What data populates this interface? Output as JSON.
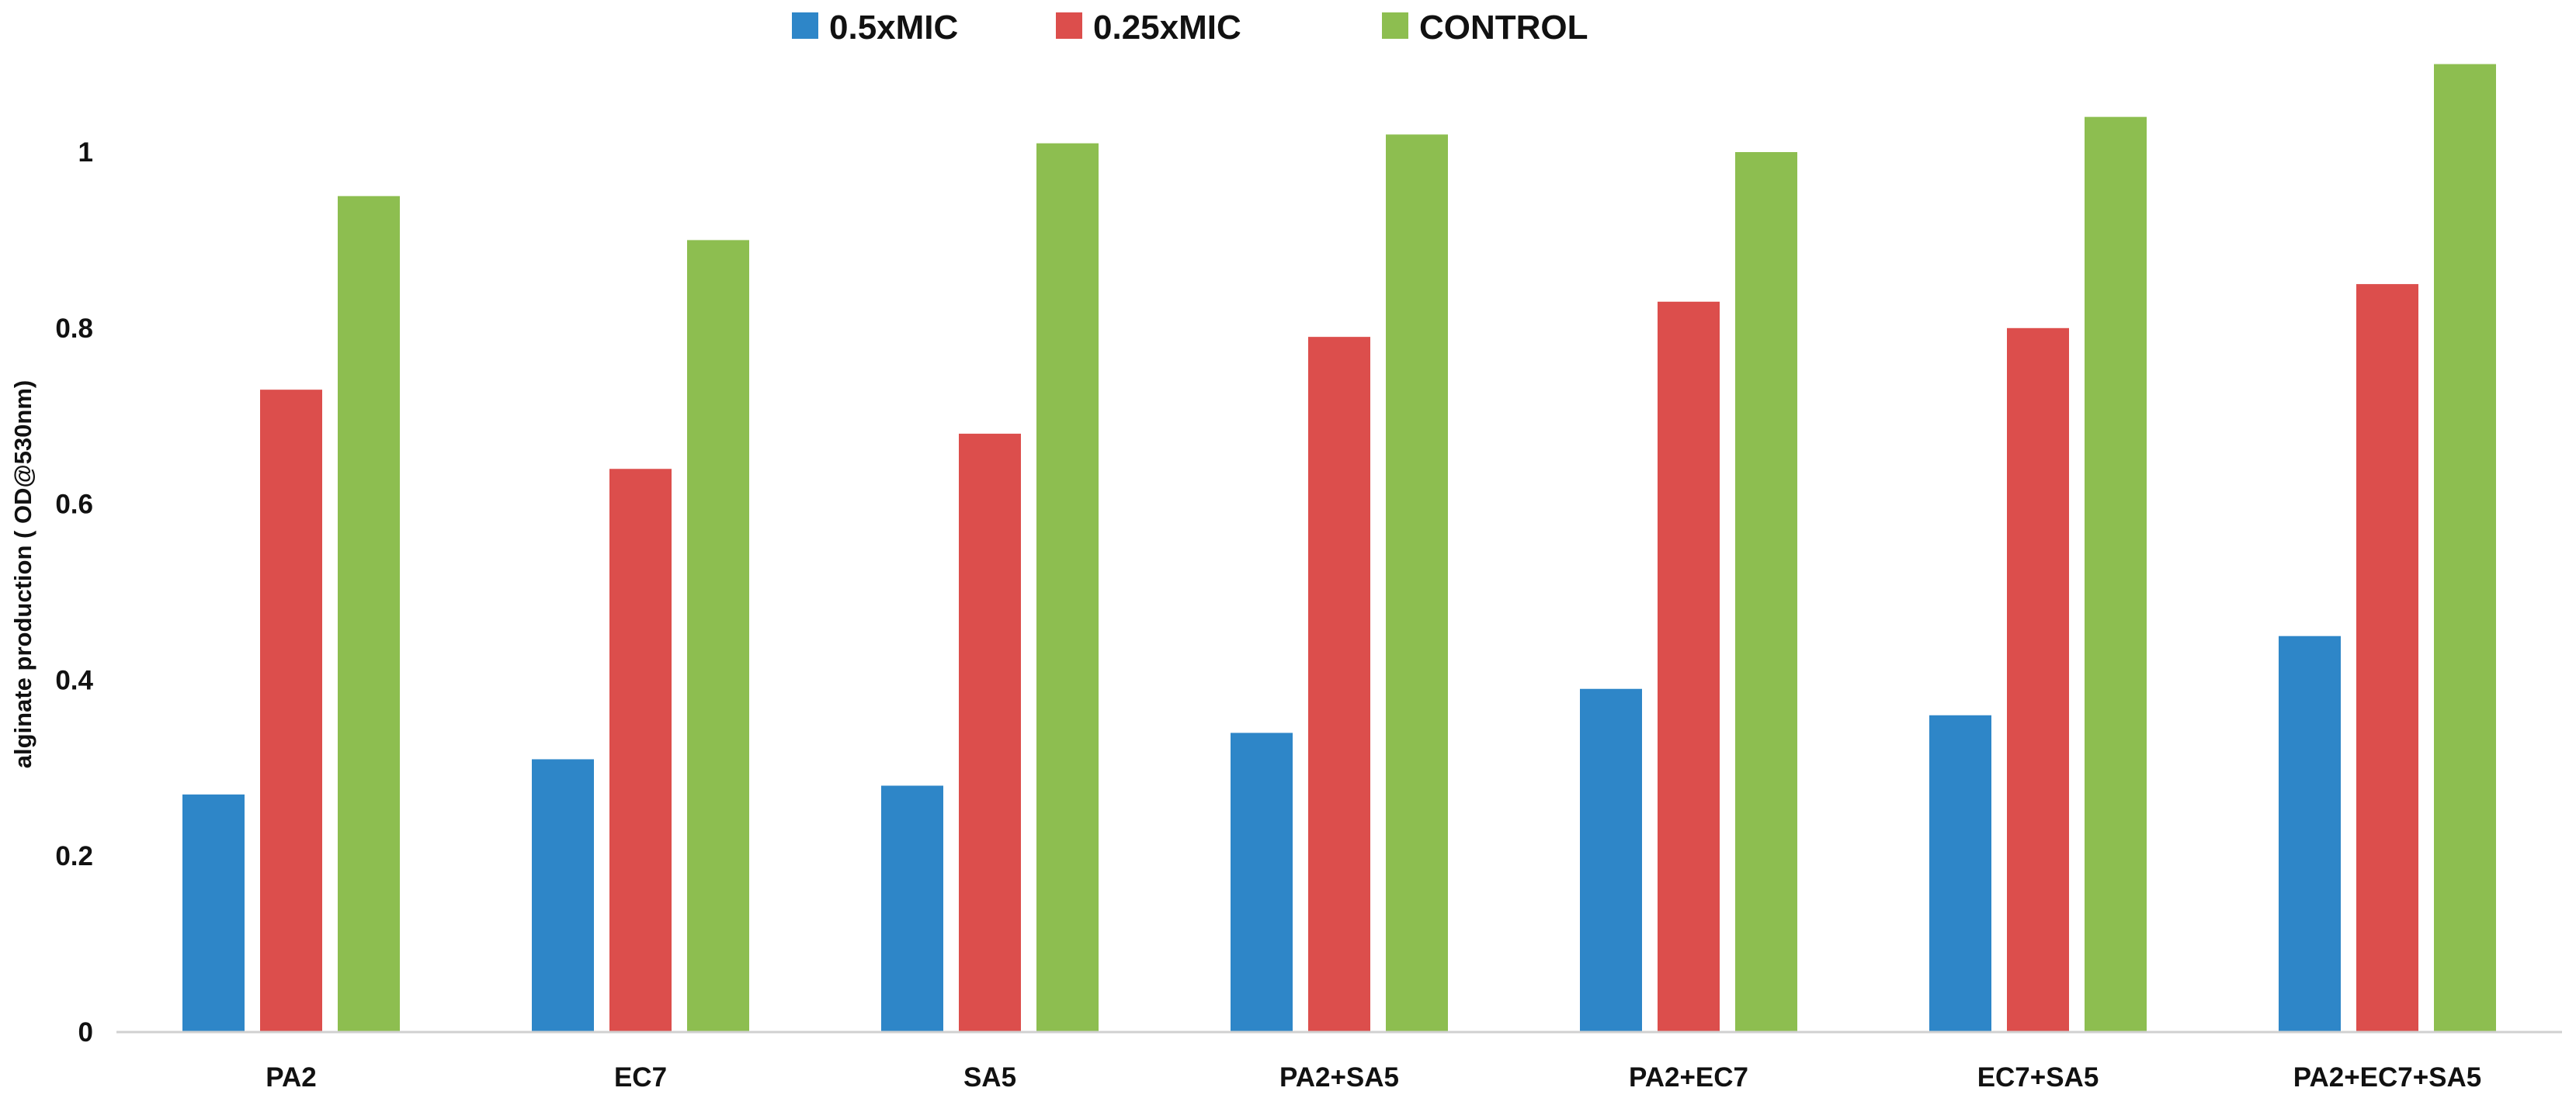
{
  "chart_data": {
    "type": "bar",
    "title": "",
    "xlabel": "",
    "ylabel": "alginate production ( OD@530nm)",
    "ylim": [
      0,
      1.1
    ],
    "yticks": [
      0,
      0.2,
      0.4,
      0.6,
      0.8,
      1
    ],
    "ytick_labels": [
      "0",
      "0.2",
      "0.4",
      "0.6",
      "0.8",
      "1"
    ],
    "categories": [
      "PA2",
      "EC7",
      "SA5",
      "PA2+SA5",
      "PA2+EC7",
      "EC7+SA5",
      "PA2+EC7+SA5"
    ],
    "series": [
      {
        "name": "0.5xMIC",
        "color": "#2E86C8",
        "values": [
          0.27,
          0.31,
          0.28,
          0.34,
          0.39,
          0.36,
          0.45
        ]
      },
      {
        "name": "0.25xMIC",
        "color": "#DC4E4C",
        "values": [
          0.73,
          0.64,
          0.68,
          0.79,
          0.83,
          0.8,
          0.85
        ]
      },
      {
        "name": "CONTROL",
        "color": "#8DBE50",
        "values": [
          0.95,
          0.9,
          1.01,
          1.02,
          1.0,
          1.04,
          1.1
        ]
      }
    ],
    "grid": false,
    "legend_position": "top-center"
  }
}
